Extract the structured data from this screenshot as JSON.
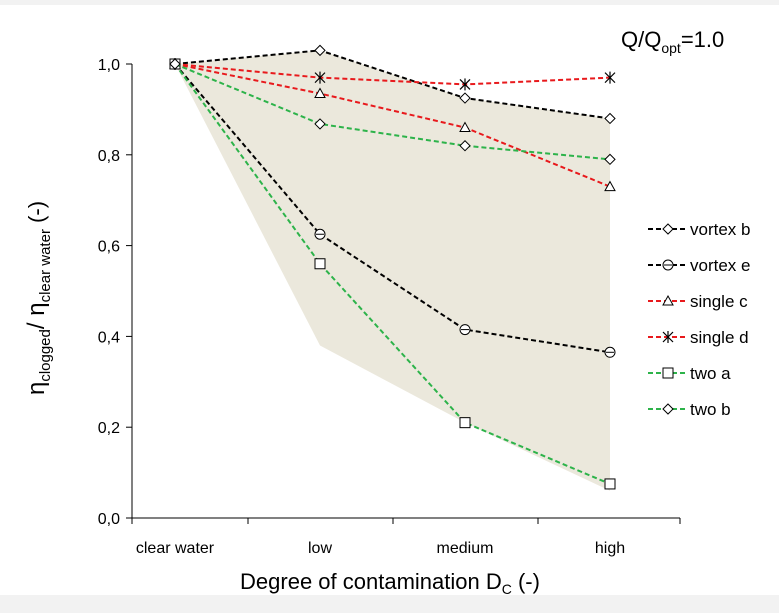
{
  "chart_data": {
    "type": "line",
    "annotation": {
      "main": "Q/Q",
      "sub": "opt",
      "tail": "=1.0"
    },
    "xlabel": {
      "main": "Degree of contamination D",
      "sub": "C",
      "tail": " (-)"
    },
    "ylabel": {
      "eta1": "η",
      "sub1": "clogged",
      "slash": "/ ",
      "eta2": "η",
      "sub2": "clear water",
      "tail": " (-)"
    },
    "categories": [
      "clear water",
      "low",
      "medium",
      "high"
    ],
    "ylim": [
      0,
      1.0
    ],
    "yticks": [
      0,
      0.2,
      0.4,
      0.6,
      0.8,
      1.0
    ],
    "ytick_labels": [
      "0,0",
      "0,2",
      "0,4",
      "0,6",
      "0,8",
      "1,0"
    ],
    "grid": false,
    "legend_position": "right",
    "band": {
      "color": "#ebe8dc",
      "upper": [
        1.0,
        1.03,
        0.925,
        0.88
      ],
      "lower": [
        1.0,
        0.38,
        0.21,
        0.06
      ]
    },
    "series": [
      {
        "name": "vortex b",
        "color": "#000000",
        "marker": "diamond",
        "values": [
          1.0,
          1.03,
          0.925,
          0.88
        ]
      },
      {
        "name": "vortex e",
        "color": "#000000",
        "marker": "circle",
        "values": [
          1.0,
          0.625,
          0.415,
          0.365
        ]
      },
      {
        "name": "single c",
        "color": "#e8191c",
        "marker": "triangle",
        "values": [
          1.0,
          0.935,
          0.86,
          0.73
        ]
      },
      {
        "name": "single d",
        "color": "#e8191c",
        "marker": "star",
        "values": [
          1.0,
          0.97,
          0.955,
          0.97
        ]
      },
      {
        "name": "two a",
        "color": "#2db34a",
        "marker": "square",
        "values": [
          1.0,
          0.56,
          0.21,
          0.075
        ]
      },
      {
        "name": "two b",
        "color": "#2db34a",
        "marker": "diamond",
        "values": [
          1.0,
          0.868,
          0.82,
          0.79
        ]
      }
    ]
  }
}
